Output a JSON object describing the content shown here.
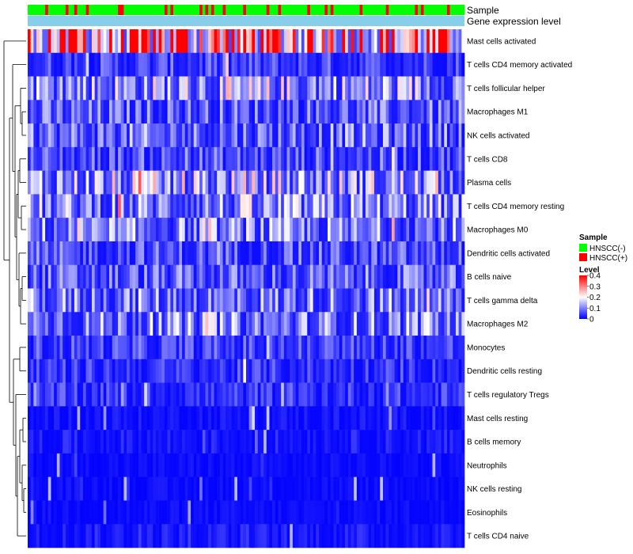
{
  "chart_data": {
    "type": "heatmap",
    "n_samples": 150,
    "annotation_rows": [
      {
        "name": "Sample",
        "legend_title": "Sample",
        "categories": [
          {
            "label": "HNSCC(-)",
            "color": "#00FF00"
          },
          {
            "label": "HNSCC(+)",
            "color": "#FF0000"
          }
        ]
      },
      {
        "name": "Gene expression level",
        "color": "#87CEEB"
      }
    ],
    "rows": [
      {
        "label": "Mast cells activated",
        "mean": 0.32
      },
      {
        "label": "T cells CD4 memory activated",
        "mean": 0.05
      },
      {
        "label": "T cells follicular helper",
        "mean": 0.12
      },
      {
        "label": "Macrophages M1",
        "mean": 0.07
      },
      {
        "label": "NK cells activated",
        "mean": 0.08
      },
      {
        "label": "T cells CD8",
        "mean": 0.06
      },
      {
        "label": "Plasma cells",
        "mean": 0.12
      },
      {
        "label": "T cells CD4 memory resting",
        "mean": 0.1
      },
      {
        "label": "Macrophages M0",
        "mean": 0.09
      },
      {
        "label": "Dendritic cells activated",
        "mean": 0.06
      },
      {
        "label": "B cells naive",
        "mean": 0.07
      },
      {
        "label": "T cells gamma delta",
        "mean": 0.09
      },
      {
        "label": "Macrophages M2",
        "mean": 0.09
      },
      {
        "label": "Monocytes",
        "mean": 0.05
      },
      {
        "label": "Dendritic cells resting",
        "mean": 0.04
      },
      {
        "label": "T cells regulatory  Tregs",
        "mean": 0.04
      },
      {
        "label": "Mast cells resting",
        "mean": 0.015
      },
      {
        "label": "B cells memory",
        "mean": 0.02
      },
      {
        "label": "Neutrophils",
        "mean": 0.01
      },
      {
        "label": "NK cells resting",
        "mean": 0.01
      },
      {
        "label": "Eosinophils",
        "mean": 0.01
      },
      {
        "label": "T cells CD4 naive",
        "mean": 0.02
      }
    ],
    "color_scale": {
      "title": "Level",
      "min": 0,
      "max": 0.4,
      "ticks": [
        "0.4",
        "0.3",
        "0.2",
        "0.1",
        "0"
      ],
      "tick_values": [
        0.4,
        0.3,
        0.2,
        0.1,
        0
      ],
      "low_color": "#0000FF",
      "mid_color": "#FFFFFF",
      "high_color": "#FF0000",
      "midpoint": 0.2
    },
    "row_dendrogram": true
  }
}
